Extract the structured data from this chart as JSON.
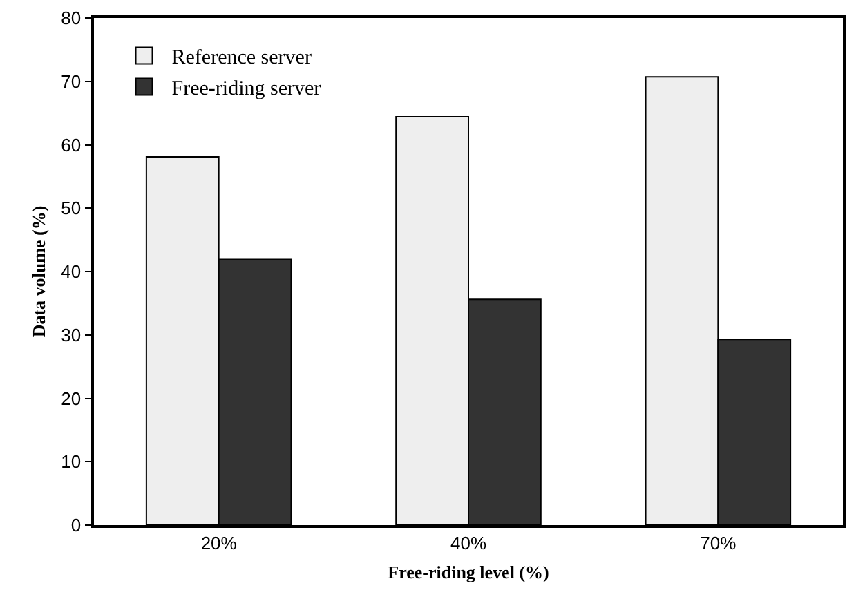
{
  "chart_data": {
    "type": "bar",
    "xlabel": "Free-riding level (%)",
    "ylabel": "Data volume (%)",
    "categories": [
      "20%",
      "40%",
      "70%"
    ],
    "series": [
      {
        "name": "Reference server",
        "color": "#eeeeee",
        "values": [
          58.1,
          64.4,
          70.7
        ]
      },
      {
        "name": "Free-riding server",
        "color": "#333333",
        "values": [
          41.9,
          35.6,
          29.3
        ]
      }
    ],
    "ylim": [
      0,
      80
    ],
    "yticks": [
      0,
      10,
      20,
      30,
      40,
      50,
      60,
      70,
      80
    ],
    "grid": false,
    "legend": "top left"
  }
}
